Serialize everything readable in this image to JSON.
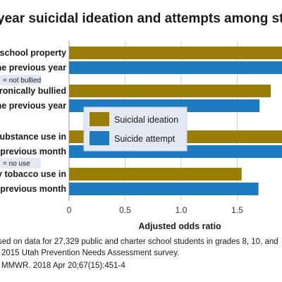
{
  "chart_data": {
    "type": "bar",
    "orientation": "horizontal",
    "title": "year suicidal ideation and attempts among students in",
    "xlabel": "Adjusted odds ratio",
    "ylabel": "",
    "xlim": [
      0,
      1.9
    ],
    "x_ticks": [
      "0",
      "0.5",
      "1.0",
      "1.5"
    ],
    "x_tick_values": [
      0,
      0.5,
      1.0,
      1.5
    ],
    "grid": true,
    "legend_position": "center",
    "groups": [
      {
        "label_lines": [
          "on school property",
          "n the previous year"
        ],
        "reference": "= not bullied"
      },
      {
        "label_lines": [
          "lectronically bullied",
          "n the previous year"
        ],
        "reference": ""
      },
      {
        "label_lines": [
          "y substance use in",
          "the previous month"
        ],
        "reference": "= no use"
      },
      {
        "label_lines": [
          "Any tobacco use in",
          "the previous month"
        ],
        "reference": ""
      }
    ],
    "reference_labels": [
      "= not bullied",
      "= no use"
    ],
    "series": [
      {
        "name": "Suicidal ideation",
        "color": "#9b7d0a",
        "values": [
          1.9,
          1.8,
          1.9,
          1.54
        ]
      },
      {
        "name": "Suicide attempt",
        "color": "#1e7bc0",
        "values": [
          1.9,
          1.7,
          1.9,
          1.69
        ]
      }
    ],
    "notes": [
      "sed on data for 27,329 public and charter school students in grades 8, 10, and",
      "2015 Utah Prevention Needs Assessment survey.",
      "MMWR. 2018 Apr 20;67(15):451-4"
    ]
  }
}
